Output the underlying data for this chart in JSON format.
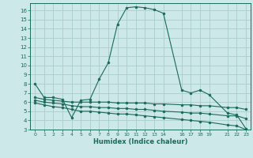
{
  "background_color": "#cce8e8",
  "grid_color": "#aacccc",
  "line_color": "#1a6b5a",
  "xlabel": "Humidex (Indice chaleur)",
  "ylim": [
    3,
    16.8
  ],
  "xlim": [
    -0.5,
    23.5
  ],
  "yticks": [
    3,
    4,
    5,
    6,
    7,
    8,
    9,
    10,
    11,
    12,
    13,
    14,
    15,
    16
  ],
  "xtick_positions": [
    0,
    1,
    2,
    3,
    4,
    5,
    6,
    7,
    8,
    9,
    10,
    11,
    12,
    13,
    14,
    16,
    17,
    18,
    19,
    21,
    22,
    23
  ],
  "xtick_labels": [
    "0",
    "1",
    "2",
    "3",
    "4",
    "5",
    "6",
    "7",
    "8",
    "9",
    "10",
    "11",
    "12",
    "13",
    "14",
    "16",
    "17",
    "18",
    "19",
    "21",
    "22",
    "23"
  ],
  "series": [
    {
      "x": [
        0,
        1,
        2,
        3,
        4,
        5,
        6,
        7,
        8,
        9,
        10,
        11,
        12,
        13,
        14,
        16,
        17,
        18,
        19,
        21,
        22,
        23
      ],
      "y": [
        8.0,
        6.5,
        6.5,
        6.3,
        4.3,
        6.2,
        6.3,
        8.5,
        10.3,
        14.5,
        16.3,
        16.4,
        16.3,
        16.1,
        15.7,
        7.3,
        7.0,
        7.3,
        6.8,
        4.8,
        4.6,
        3.1
      ]
    },
    {
      "x": [
        0,
        1,
        2,
        3,
        4,
        5,
        6,
        7,
        8,
        9,
        10,
        11,
        12,
        13,
        14,
        16,
        17,
        18,
        19,
        21,
        22,
        23
      ],
      "y": [
        6.5,
        6.3,
        6.2,
        6.1,
        6.0,
        6.0,
        6.0,
        6.0,
        6.0,
        5.9,
        5.9,
        5.9,
        5.9,
        5.8,
        5.8,
        5.7,
        5.7,
        5.6,
        5.6,
        5.4,
        5.4,
        5.2
      ]
    },
    {
      "x": [
        0,
        1,
        2,
        3,
        4,
        5,
        6,
        7,
        8,
        9,
        10,
        11,
        12,
        13,
        14,
        16,
        17,
        18,
        19,
        21,
        22,
        23
      ],
      "y": [
        6.2,
        6.0,
        5.9,
        5.8,
        5.6,
        5.5,
        5.5,
        5.4,
        5.4,
        5.3,
        5.3,
        5.2,
        5.2,
        5.1,
        5.0,
        4.9,
        4.8,
        4.8,
        4.7,
        4.5,
        4.5,
        4.2
      ]
    },
    {
      "x": [
        0,
        1,
        2,
        3,
        4,
        5,
        6,
        7,
        8,
        9,
        10,
        11,
        12,
        13,
        14,
        16,
        17,
        18,
        19,
        21,
        22,
        23
      ],
      "y": [
        5.9,
        5.7,
        5.5,
        5.4,
        5.2,
        5.0,
        5.0,
        4.9,
        4.8,
        4.7,
        4.7,
        4.6,
        4.5,
        4.4,
        4.3,
        4.1,
        4.0,
        3.9,
        3.8,
        3.5,
        3.4,
        3.0
      ]
    }
  ]
}
